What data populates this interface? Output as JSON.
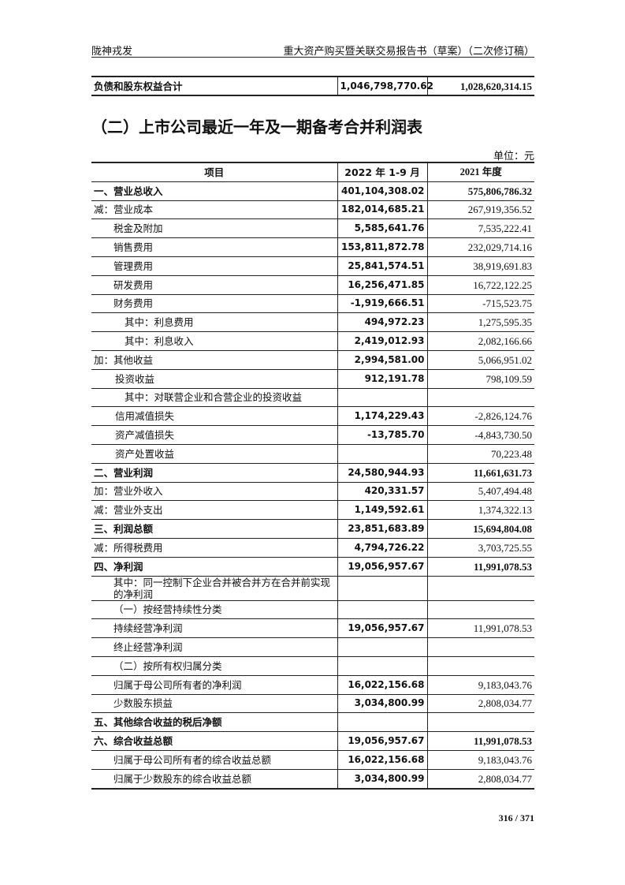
{
  "header": {
    "left": "陇神戎发",
    "right": "重大资产购买暨关联交易报告书（草案）（二次修订稿）"
  },
  "prev_total": {
    "label": "负债和股东权益合计",
    "v1": "1,046,798,770.62",
    "v2": "1,028,620,314.15"
  },
  "section_title": "（二）上市公司最近一年及一期备考合并利润表",
  "unit": "单位：元",
  "columns": [
    "项目",
    "2022 年 1-9 月",
    "2021 年度"
  ],
  "rows": [
    {
      "label": "一、营业总收入",
      "v1": "401,104,308.02",
      "v2": "575,806,786.32",
      "style": "b"
    },
    {
      "label": "减：营业成本",
      "v1": "182,014,685.21",
      "v2": "267,919,356.52",
      "style": ""
    },
    {
      "label": "税金及附加",
      "v1": "5,585,641.76",
      "v2": "7,535,222.41",
      "style": "i1"
    },
    {
      "label": "销售费用",
      "v1": "153,811,872.78",
      "v2": "232,029,714.16",
      "style": "i1"
    },
    {
      "label": "管理费用",
      "v1": "25,841,574.51",
      "v2": "38,919,691.83",
      "style": "i1"
    },
    {
      "label": "研发费用",
      "v1": "16,256,471.85",
      "v2": "16,722,122.25",
      "style": "i1"
    },
    {
      "label": "财务费用",
      "v1": "-1,919,666.51",
      "v2": "-715,523.75",
      "style": "i1"
    },
    {
      "label": "其中：利息费用",
      "v1": "494,972.23",
      "v2": "1,275,595.35",
      "style": "i2"
    },
    {
      "label": "其中：利息收入",
      "v1": "2,419,012.93",
      "v2": "2,082,166.66",
      "style": "i2"
    },
    {
      "label": "加：其他收益",
      "v1": "2,994,581.00",
      "v2": "5,066,951.02",
      "style": ""
    },
    {
      "label": "投资收益",
      "v1": "912,191.78",
      "v2": "798,109.59",
      "style": "i1b"
    },
    {
      "label": "其中：对联营企业和合营企业的投资收益",
      "v1": "",
      "v2": "",
      "style": "i2"
    },
    {
      "label": "信用减值损失",
      "v1": "1,174,229.43",
      "v2": "-2,826,124.76",
      "style": "i1b"
    },
    {
      "label": "资产减值损失",
      "v1": "-13,785.70",
      "v2": "-4,843,730.50",
      "style": "i1b"
    },
    {
      "label": "资产处置收益",
      "v1": "",
      "v2": "70,223.48",
      "style": "i1b"
    },
    {
      "label": "二、营业利润",
      "v1": "24,580,944.93",
      "v2": "11,661,631.73",
      "style": "b"
    },
    {
      "label": "加：营业外收入",
      "v1": "420,331.57",
      "v2": "5,407,494.48",
      "style": ""
    },
    {
      "label": "减：营业外支出",
      "v1": "1,149,592.61",
      "v2": "1,374,322.13",
      "style": ""
    },
    {
      "label": "三、利润总额",
      "v1": "23,851,683.89",
      "v2": "15,694,804.08",
      "style": "b"
    },
    {
      "label": "减：所得税费用",
      "v1": "4,794,726.22",
      "v2": "3,703,725.55",
      "style": ""
    },
    {
      "label": "四、净利润",
      "v1": "19,056,957.67",
      "v2": "11,991,078.53",
      "style": "b"
    },
    {
      "label": "其中：同一控制下企业合并被合并方在合并前实现的净利润",
      "v1": "",
      "v2": "",
      "style": "i1"
    },
    {
      "label": "（一）按经营持续性分类",
      "v1": "",
      "v2": "",
      "style": "i1"
    },
    {
      "label": "持续经营净利润",
      "v1": "19,056,957.67",
      "v2": "11,991,078.53",
      "style": "i1"
    },
    {
      "label": "终止经营净利润",
      "v1": "",
      "v2": "",
      "style": "i1"
    },
    {
      "label": "（二）按所有权归属分类",
      "v1": "",
      "v2": "",
      "style": "i1"
    },
    {
      "label": "归属于母公司所有者的净利润",
      "v1": "16,022,156.68",
      "v2": "9,183,043.76",
      "style": "i1"
    },
    {
      "label": "少数股东损益",
      "v1": "3,034,800.99",
      "v2": "2,808,034.77",
      "style": "i1"
    },
    {
      "label": "五、其他综合收益的税后净额",
      "v1": "",
      "v2": "",
      "style": "b"
    },
    {
      "label": "六、综合收益总额",
      "v1": "19,056,957.67",
      "v2": "11,991,078.53",
      "style": "b"
    },
    {
      "label": "归属于母公司所有者的综合收益总额",
      "v1": "16,022,156.68",
      "v2": "9,183,043.76",
      "style": "i1"
    },
    {
      "label": "归属于少数股东的综合收益总额",
      "v1": "3,034,800.99",
      "v2": "2,808,034.77",
      "style": "i1"
    }
  ],
  "page_number": "316 / 371"
}
